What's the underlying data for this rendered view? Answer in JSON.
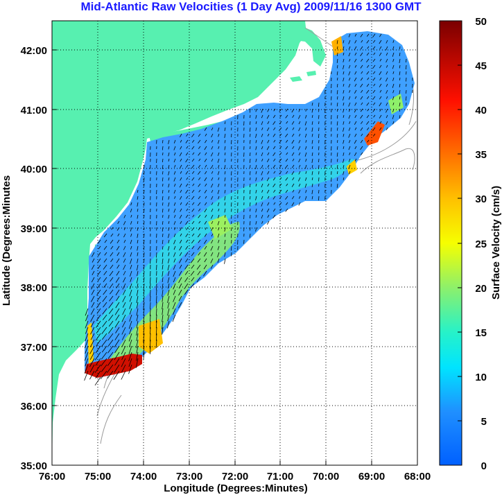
{
  "title": "Mid-Atlantic Raw Velocities (1 Day Avg) 2009/11/16 1300 GMT",
  "x_axis": {
    "label": "Longitude (Degrees:Minutes)",
    "ticks": [
      "76:00",
      "75:00",
      "74:00",
      "73:00",
      "72:00",
      "71:00",
      "70:00",
      "69:00",
      "68:00"
    ]
  },
  "y_axis": {
    "label": "Latitude (Degrees:Minutes",
    "ticks": [
      "35:00",
      "36:00",
      "37:00",
      "38:00",
      "39:00",
      "40:00",
      "41:00",
      "42:00"
    ]
  },
  "colorbar": {
    "label": "Surface Velocity (cm/s)",
    "ticks": [
      "0",
      "5",
      "10",
      "15",
      "20",
      "25",
      "30",
      "35",
      "40",
      "45",
      "50"
    ],
    "range": [
      0,
      50
    ]
  },
  "colors": {
    "land": "#57f0b0",
    "title": "#1a1aff",
    "bathymetry": "#9a9a9a",
    "arrows": "#000000"
  }
}
